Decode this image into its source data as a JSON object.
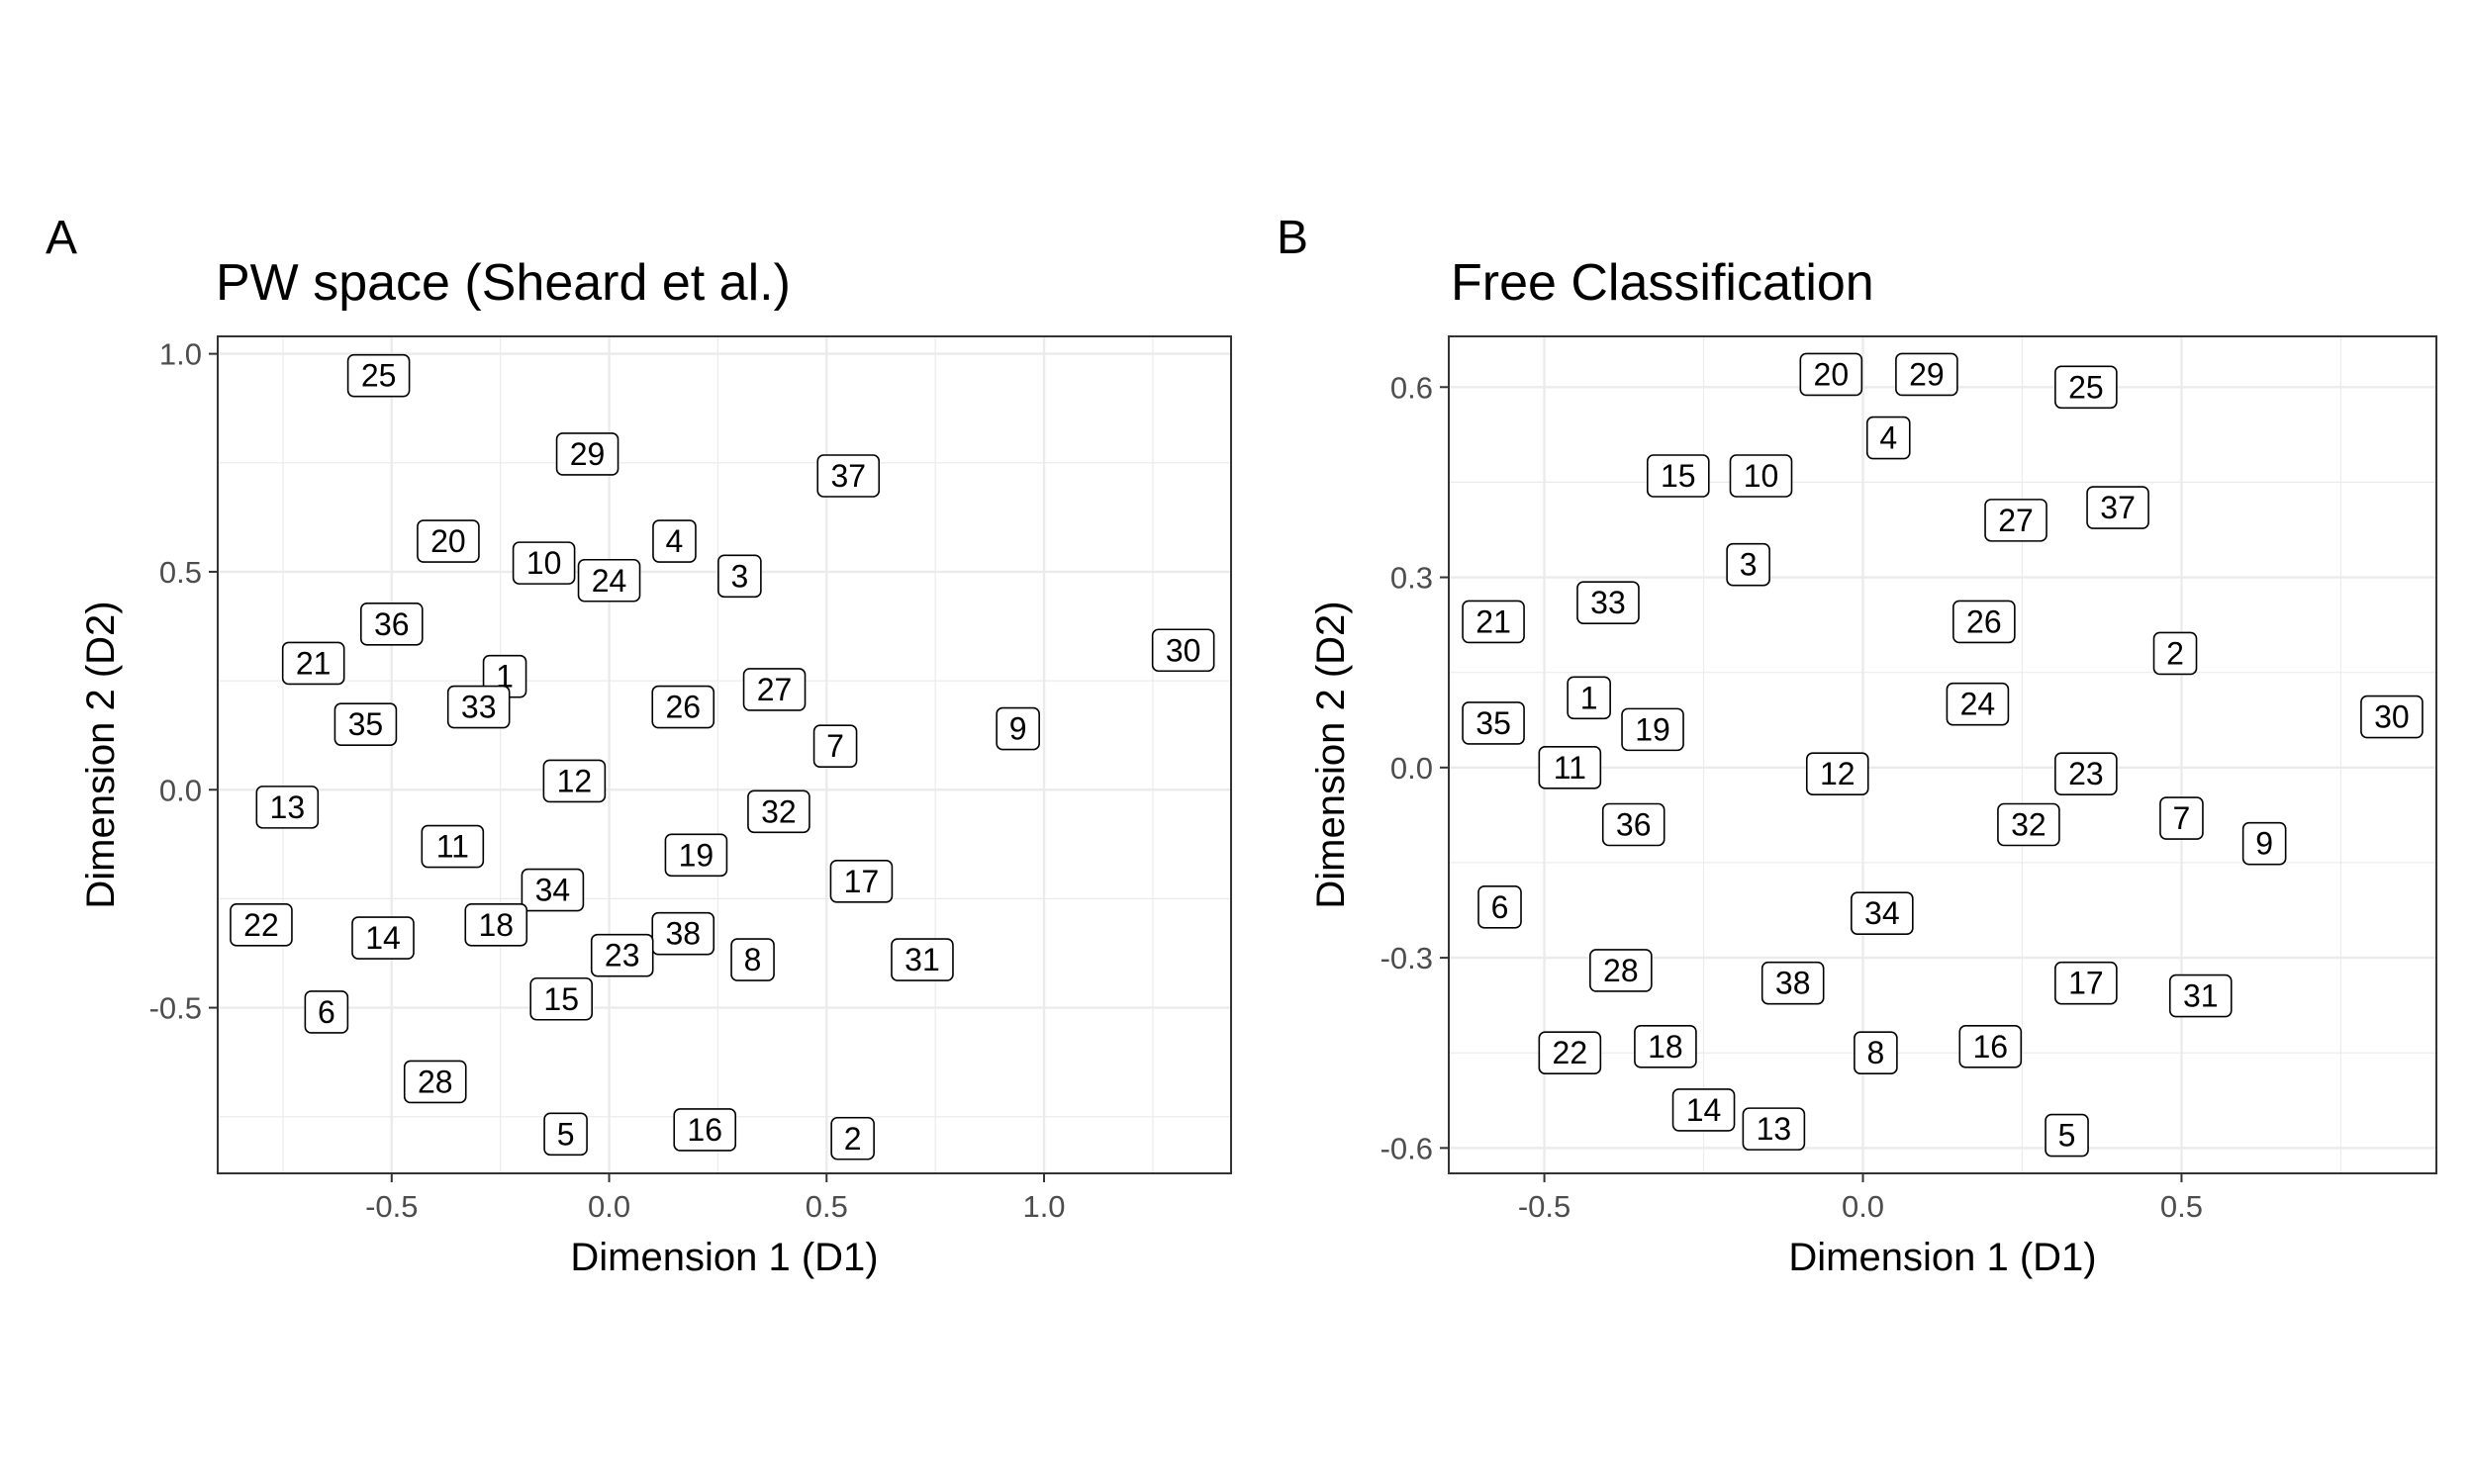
{
  "chart_data": [
    {
      "panel": "A",
      "type": "scatter",
      "title": "PW space (Sheard et al.)",
      "xlabel": "Dimension 1 (D1)",
      "ylabel": "Dimension 2 (D2)",
      "xlim": [
        -0.9,
        1.43
      ],
      "ylim": [
        -0.88,
        1.04
      ],
      "xticks": [
        -0.5,
        0.0,
        0.5,
        1.0
      ],
      "xtick_labels": [
        "-0.5",
        "0.0",
        "0.5",
        "1.0"
      ],
      "yticks": [
        -0.5,
        0.0,
        0.5,
        1.0
      ],
      "ytick_labels": [
        "-0.5",
        "0.0",
        "0.5",
        "1.0"
      ],
      "grid": true,
      "points": [
        {
          "label": "25",
          "x": -0.53,
          "y": 0.95
        },
        {
          "label": "29",
          "x": -0.05,
          "y": 0.77
        },
        {
          "label": "37",
          "x": 0.55,
          "y": 0.72
        },
        {
          "label": "20",
          "x": -0.37,
          "y": 0.57
        },
        {
          "label": "10",
          "x": -0.15,
          "y": 0.52
        },
        {
          "label": "24",
          "x": 0.0,
          "y": 0.48
        },
        {
          "label": "4",
          "x": 0.15,
          "y": 0.57
        },
        {
          "label": "3",
          "x": 0.3,
          "y": 0.49
        },
        {
          "label": "36",
          "x": -0.5,
          "y": 0.38
        },
        {
          "label": "21",
          "x": -0.68,
          "y": 0.29
        },
        {
          "label": "1",
          "x": -0.24,
          "y": 0.26
        },
        {
          "label": "33",
          "x": -0.3,
          "y": 0.19
        },
        {
          "label": "26",
          "x": 0.17,
          "y": 0.19
        },
        {
          "label": "27",
          "x": 0.38,
          "y": 0.23
        },
        {
          "label": "30",
          "x": 1.32,
          "y": 0.32
        },
        {
          "label": "35",
          "x": -0.56,
          "y": 0.15
        },
        {
          "label": "9",
          "x": 0.94,
          "y": 0.14
        },
        {
          "label": "7",
          "x": 0.52,
          "y": 0.1
        },
        {
          "label": "12",
          "x": -0.08,
          "y": 0.02
        },
        {
          "label": "13",
          "x": -0.74,
          "y": -0.04
        },
        {
          "label": "32",
          "x": 0.39,
          "y": -0.05
        },
        {
          "label": "11",
          "x": -0.36,
          "y": -0.13
        },
        {
          "label": "19",
          "x": 0.2,
          "y": -0.15
        },
        {
          "label": "34",
          "x": -0.13,
          "y": -0.23
        },
        {
          "label": "17",
          "x": 0.58,
          "y": -0.21
        },
        {
          "label": "22",
          "x": -0.8,
          "y": -0.31
        },
        {
          "label": "14",
          "x": -0.52,
          "y": -0.34
        },
        {
          "label": "18",
          "x": -0.26,
          "y": -0.31
        },
        {
          "label": "38",
          "x": 0.17,
          "y": -0.33
        },
        {
          "label": "23",
          "x": 0.03,
          "y": -0.38
        },
        {
          "label": "8",
          "x": 0.33,
          "y": -0.39
        },
        {
          "label": "31",
          "x": 0.72,
          "y": -0.39
        },
        {
          "label": "15",
          "x": -0.11,
          "y": -0.48
        },
        {
          "label": "6",
          "x": -0.65,
          "y": -0.51
        },
        {
          "label": "28",
          "x": -0.4,
          "y": -0.67
        },
        {
          "label": "5",
          "x": -0.1,
          "y": -0.79
        },
        {
          "label": "16",
          "x": 0.22,
          "y": -0.78
        },
        {
          "label": "2",
          "x": 0.56,
          "y": -0.8
        }
      ]
    },
    {
      "panel": "B",
      "type": "scatter",
      "title": "Free Classification",
      "xlabel": "Dimension 1 (D1)",
      "ylabel": "Dimension 2 (D2)",
      "xlim": [
        -0.65,
        0.9
      ],
      "ylim": [
        -0.64,
        0.68
      ],
      "xticks": [
        -0.5,
        0.0,
        0.5
      ],
      "xtick_labels": [
        "-0.5",
        "0.0",
        "0.5"
      ],
      "yticks": [
        -0.6,
        -0.3,
        0.0,
        0.3,
        0.6
      ],
      "ytick_labels": [
        "-0.6",
        "-0.3",
        "0.0",
        "0.3",
        "0.6"
      ],
      "grid": true,
      "points": [
        {
          "label": "20",
          "x": -0.05,
          "y": 0.62
        },
        {
          "label": "29",
          "x": 0.1,
          "y": 0.62
        },
        {
          "label": "25",
          "x": 0.35,
          "y": 0.6
        },
        {
          "label": "4",
          "x": 0.04,
          "y": 0.52
        },
        {
          "label": "15",
          "x": -0.29,
          "y": 0.46
        },
        {
          "label": "10",
          "x": -0.16,
          "y": 0.46
        },
        {
          "label": "37",
          "x": 0.4,
          "y": 0.41
        },
        {
          "label": "27",
          "x": 0.24,
          "y": 0.39
        },
        {
          "label": "3",
          "x": -0.18,
          "y": 0.32
        },
        {
          "label": "33",
          "x": -0.4,
          "y": 0.26
        },
        {
          "label": "21",
          "x": -0.58,
          "y": 0.23
        },
        {
          "label": "26",
          "x": 0.19,
          "y": 0.23
        },
        {
          "label": "2",
          "x": 0.49,
          "y": 0.18
        },
        {
          "label": "1",
          "x": -0.43,
          "y": 0.11
        },
        {
          "label": "24",
          "x": 0.18,
          "y": 0.1
        },
        {
          "label": "30",
          "x": 0.83,
          "y": 0.08
        },
        {
          "label": "35",
          "x": -0.58,
          "y": 0.07
        },
        {
          "label": "19",
          "x": -0.33,
          "y": 0.06
        },
        {
          "label": "11",
          "x": -0.46,
          "y": 0.0
        },
        {
          "label": "12",
          "x": -0.04,
          "y": -0.01
        },
        {
          "label": "23",
          "x": 0.35,
          "y": -0.01
        },
        {
          "label": "36",
          "x": -0.36,
          "y": -0.09
        },
        {
          "label": "32",
          "x": 0.26,
          "y": -0.09
        },
        {
          "label": "7",
          "x": 0.5,
          "y": -0.08
        },
        {
          "label": "9",
          "x": 0.63,
          "y": -0.12
        },
        {
          "label": "6",
          "x": -0.57,
          "y": -0.22
        },
        {
          "label": "34",
          "x": 0.03,
          "y": -0.23
        },
        {
          "label": "28",
          "x": -0.38,
          "y": -0.32
        },
        {
          "label": "38",
          "x": -0.11,
          "y": -0.34
        },
        {
          "label": "17",
          "x": 0.35,
          "y": -0.34
        },
        {
          "label": "31",
          "x": 0.53,
          "y": -0.36
        },
        {
          "label": "18",
          "x": -0.31,
          "y": -0.44
        },
        {
          "label": "16",
          "x": 0.2,
          "y": -0.44
        },
        {
          "label": "22",
          "x": -0.46,
          "y": -0.45
        },
        {
          "label": "8",
          "x": 0.02,
          "y": -0.45
        },
        {
          "label": "14",
          "x": -0.25,
          "y": -0.54
        },
        {
          "label": "13",
          "x": -0.14,
          "y": -0.57
        },
        {
          "label": "5",
          "x": 0.32,
          "y": -0.58
        }
      ]
    }
  ]
}
